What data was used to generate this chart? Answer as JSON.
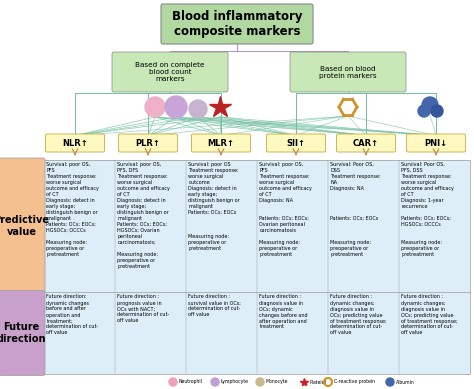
{
  "title": "Blood inflammatory\ncomposite markers",
  "branch_left_text": "Based on complete\nblood count\nmarkers",
  "branch_right_text": "Based on blood\nprotein markers",
  "markers": [
    "NLR↑",
    "PLR↑",
    "MLR↑",
    "SII↑",
    "CAR↑",
    "PNI↓"
  ],
  "predictive_label": "Predictive\nvalue",
  "future_label": "Future\ndirection",
  "title_color": "#b0d8a0",
  "branch_color": "#c8e8b8",
  "marker_color": "#fef9c0",
  "pred_label_color": "#f5c090",
  "future_label_color": "#c8a0cc",
  "content_color": "#ddeef8",
  "line_color": "#70bfa0",
  "arrow_color": "#c09050",
  "border_color": "#999999",
  "marker_border": "#c8a840",
  "predictive_content": [
    "Survival: poor OS,\nPFS\nTreatment response:\nworse surgical\noutcome and efficacy\nof CT\nDiagnosis: detect in\nearly stage;\ndistinguish benign or\nmalignant\nPatients: OCs; EOCs;\nHGSOCs; OCCCs\n\nMeasuring node:\npreoperative or\npretreatment",
    "Survival: poor OS,\nPFS, DFS\nTreatment response:\nworse surgical\noutcome and efficacy\nof CT\nDiagnosis: detect in\nearly stage;\ndistinguish benign or\nmalignant\nPatients: OCs; EOCs;\nHGSOCs; Ovarian\nperitoneal\ncarcinomatosis;\n\nMeasuring node:\npreoperative or\npretreatment",
    "Survival: poor OS\nTreatment response:\nworse surgical\noutcome\nDiagnosis: detect in\nearly stage;\ndistinguish benign or\nmalignant\nPatients: OCs; EOCs\n\n\n\nMeasuring node:\npreoperative or\npretreatment",
    "Survival: poor OS,\nPFS\nTreatment response:\nworse surgical\noutcome and efficacy\nof CT\nDiagnosis: NA\n\n\nPatients: OCs; EOCs;\nOvarian peritoneal\ncarcinomatosis\n\nMeasuring node:\npreoperative or\npretreatment",
    "Survival: Poor OS,\nDSS\nTreatment response:\nNA\nDiagnosis: NA\n\n\n\n\nPatients: OCs; EOCs\n\n\n\nMeasuring node:\npreoperative or\npretreatment",
    "Survival: Poor OS,\nPFS, DSS\nTreatment response:\nworse surgical\noutcome and efficacy\nof CT\nDiagnosis: 1-year\nrecurrence\n\nPatients: OCs; EOCs;\nHGSOCs; OCCCs\n\n\nMeasuring node:\npreoperative or\npretreatment"
  ],
  "future_content": [
    "Future direction:\ndynamic changes\nbefore and after\noperation and\ntreatment;\ndetermination of cut-\noff value",
    "Future direction :\nprognosis value in\nOCs with NACT;\ndetermination of cut-\noff value",
    "Future direction :\nsurvival value in OCs;\ndetermination of cut-\noff value",
    "Future direction :\ndiagnosis value in\nOCs; dynamic\nchanges before and\nafter operation and\ntreatment",
    "Future direction :\ndynamic changes;\ndiagnosis value in\nOCs; predicting value\nof treatment response;\ndetermination of cut-\noff value",
    "Future direction :\ndynamic changes;\ndiagnosis value in\nOCs; predicting value\nof treatment response;\ndetermination of cut-\noff value"
  ],
  "legend": [
    {
      "label": "Neutrophil",
      "color": "#f0a0b8"
    },
    {
      "label": "Lymphocyte",
      "color": "#c0a0d0"
    },
    {
      "label": "Monocyte",
      "color": "#c8b890"
    },
    {
      "label": "Platelet",
      "color": "#cc2222",
      "star": true
    },
    {
      "label": "C-reactive protein",
      "color": "#d49020",
      "ring": true
    },
    {
      "label": "Albumin",
      "color": "#4466aa"
    }
  ]
}
